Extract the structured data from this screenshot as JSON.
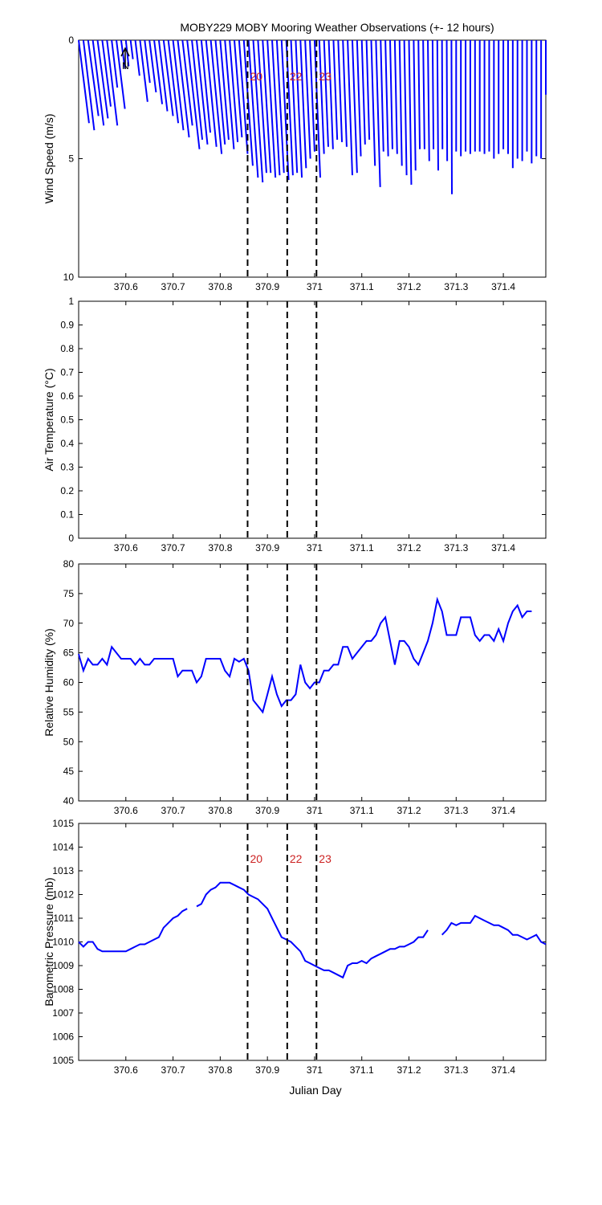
{
  "title": "MOBY229 MOBY Mooring Weather Observations (+- 12 hours)",
  "colors": {
    "series": "#0000ff",
    "event_label": "#cc2222",
    "axis": "#000000"
  },
  "x_axis": {
    "label": "Julian Day",
    "range": [
      370.5,
      371.49
    ],
    "ticks": [
      370.6,
      370.7,
      370.8,
      370.9,
      371,
      371.1,
      371.2,
      371.3,
      371.4
    ],
    "tick_labels": [
      "370.6",
      "370.7",
      "370.8",
      "370.9",
      "371",
      "371.1",
      "371.2",
      "371.3",
      "371.4"
    ]
  },
  "events": [
    {
      "label": "20",
      "x": 370.858
    },
    {
      "label": "22",
      "x": 370.942
    },
    {
      "label": "23",
      "x": 371.004
    }
  ],
  "chart_data": [
    {
      "type": "line",
      "id": "wind",
      "ylabel": "Wind Speed (m/s)",
      "ylim": [
        0,
        10
      ],
      "y_reversed": true,
      "yticks": [
        0,
        5,
        10
      ],
      "north_marker": "N",
      "show_event_labels": true,
      "series": [
        {
          "kind": "wind_sticks",
          "x": [
            370.5,
            370.51,
            370.52,
            370.53,
            370.54,
            370.55,
            370.56,
            370.57,
            370.58,
            370.59,
            370.6,
            370.61,
            370.62,
            370.63,
            370.64,
            370.65,
            370.66,
            370.67,
            370.68,
            370.69,
            370.7,
            370.71,
            370.72,
            370.73,
            370.74,
            370.75,
            370.76,
            370.77,
            370.78,
            370.79,
            370.8,
            370.81,
            370.82,
            370.83,
            370.84,
            370.85,
            370.86,
            370.87,
            370.88,
            370.89,
            370.9,
            370.91,
            370.92,
            370.93,
            370.94,
            370.95,
            370.96,
            370.97,
            370.98,
            370.99,
            371.0,
            371.01,
            371.02,
            371.03,
            371.04,
            371.05,
            371.06,
            371.07,
            371.08,
            371.09,
            371.1,
            371.11,
            371.12,
            371.13,
            371.14,
            371.15,
            371.16,
            371.17,
            371.18,
            371.19,
            371.2,
            371.21,
            371.22,
            371.23,
            371.24,
            371.25,
            371.26,
            371.27,
            371.28,
            371.29,
            371.3,
            371.31,
            371.32,
            371.33,
            371.34,
            371.35,
            371.36,
            371.37,
            371.38,
            371.39,
            371.4,
            371.41,
            371.42,
            371.43,
            371.44,
            371.45,
            371.46,
            371.47,
            371.48,
            371.49
          ],
          "speed": [
            3.5,
            3.8,
            3.2,
            3.6,
            3.3,
            2.8,
            3.6,
            2.0,
            2.9,
            1.2,
            1.1,
            0.8,
            1.5,
            2.6,
            1.8,
            2.2,
            2.7,
            3.0,
            3.2,
            3.5,
            3.8,
            4.1,
            3.6,
            4.6,
            4.2,
            4.4,
            3.9,
            4.5,
            4.8,
            4.4,
            4.2,
            4.6,
            4.3,
            4.1,
            4.8,
            5.3,
            5.8,
            6.0,
            5.6,
            5.6,
            5.8,
            5.7,
            5.6,
            5.9,
            5.7,
            5.6,
            5.8,
            5.4,
            5.0,
            4.7,
            5.8,
            4.8,
            4.5,
            4.6,
            4.2,
            4.3,
            4.5,
            5.7,
            5.6,
            4.9,
            4.4,
            4.2,
            5.3,
            6.2,
            4.7,
            4.9,
            4.6,
            4.8,
            5.3,
            5.7,
            6.1,
            5.5,
            4.6,
            4.6,
            5.1,
            4.6,
            5.5,
            4.6,
            5.1,
            6.5,
            4.7,
            4.9,
            4.7,
            4.8,
            4.7,
            4.7,
            4.8,
            4.7,
            5.0,
            4.8,
            4.6,
            4.8,
            5.4,
            5.0,
            5.1,
            4.7,
            5.2,
            4.9,
            5.0,
            2.3
          ],
          "dx_days": [
            0.022,
            0.023,
            0.022,
            0.023,
            0.022,
            0.018,
            0.022,
            0.012,
            0.018,
            0.008,
            0.006,
            0.005,
            0.009,
            0.016,
            0.011,
            0.014,
            0.017,
            0.018,
            0.02,
            0.021,
            0.022,
            0.024,
            0.021,
            0.026,
            0.022,
            0.023,
            0.019,
            0.022,
            0.023,
            0.02,
            0.018,
            0.019,
            0.017,
            0.016,
            0.018,
            0.019,
            0.02,
            0.02,
            0.018,
            0.017,
            0.017,
            0.016,
            0.015,
            0.015,
            0.014,
            0.013,
            0.013,
            0.012,
            0.011,
            0.01,
            0.012,
            0.01,
            0.009,
            0.009,
            0.008,
            0.008,
            0.008,
            0.01,
            0.01,
            0.008,
            0.007,
            0.006,
            0.008,
            0.009,
            0.006,
            0.006,
            0.005,
            0.005,
            0.005,
            0.005,
            0.005,
            0.004,
            0.003,
            0.003,
            0.003,
            0.002,
            0.002,
            0.001,
            0.001,
            0.001,
            0.0,
            0.0,
            0.0,
            0.0,
            0.0,
            0.0,
            0.0,
            0.0,
            0.0,
            0.0,
            0.0,
            0.0,
            0.0,
            0.0,
            0.0,
            0.0,
            0.0,
            0.0,
            0.0,
            0.0
          ]
        }
      ]
    },
    {
      "type": "line",
      "id": "airtemp",
      "ylabel": "Air Temperature (°C)",
      "ylim": [
        0,
        1
      ],
      "yticks": [
        0,
        0.1,
        0.2,
        0.3,
        0.4,
        0.5,
        0.6,
        0.7,
        0.8,
        0.9,
        1
      ],
      "ytick_labels": [
        "0",
        "0.1",
        "0.2",
        "0.3",
        "0.4",
        "0.5",
        "0.6",
        "0.7",
        "0.8",
        "0.9",
        "1"
      ],
      "show_event_labels": false,
      "series": []
    },
    {
      "type": "line",
      "id": "humidity",
      "ylabel": "Relative Humidity (%)",
      "ylim": [
        40,
        80
      ],
      "yticks": [
        40,
        45,
        50,
        55,
        60,
        65,
        70,
        75,
        80
      ],
      "show_event_labels": false,
      "series": [
        {
          "x": [
            370.5,
            370.51,
            370.52,
            370.53,
            370.54,
            370.55,
            370.56,
            370.57,
            370.58,
            370.59,
            370.6,
            370.61,
            370.62,
            370.63,
            370.64,
            370.65,
            370.66,
            370.67,
            370.68,
            370.69,
            370.7,
            370.71,
            370.72,
            370.73,
            370.74,
            370.75,
            370.76,
            370.77,
            370.78,
            370.79,
            370.8,
            370.81,
            370.82,
            370.83,
            370.84,
            370.85,
            370.86,
            370.87,
            370.88,
            370.89,
            370.9,
            370.91,
            370.92,
            370.93,
            370.94,
            370.95,
            370.96,
            370.97,
            370.98,
            370.99,
            371.0,
            371.01,
            371.02,
            371.03,
            371.04,
            371.05,
            371.06,
            371.07,
            371.08,
            371.09,
            371.1,
            371.11,
            371.12,
            371.13,
            371.14,
            371.15,
            371.16,
            371.17,
            371.18,
            371.19,
            371.2,
            371.21,
            371.22,
            371.23,
            371.24,
            371.25,
            371.26,
            371.27,
            371.28,
            371.29,
            371.3,
            371.31,
            371.32,
            371.33,
            371.34,
            371.35,
            371.36,
            371.37,
            371.38,
            371.39,
            371.4,
            371.41,
            371.42,
            371.43,
            371.44,
            371.45,
            371.46,
            371.47,
            371.48,
            371.49
          ],
          "values": [
            64.8,
            62.0,
            64.0,
            63.0,
            63.0,
            64.0,
            63.0,
            66.0,
            65.0,
            64.0,
            64.0,
            64.0,
            63.0,
            64.0,
            63.0,
            63.0,
            64.0,
            64.0,
            64.0,
            64.0,
            64.0,
            61.0,
            62.0,
            62.0,
            62.0,
            60.0,
            61.0,
            64.0,
            64.0,
            64.0,
            64.0,
            62.0,
            61.0,
            64.0,
            63.5,
            64.0,
            62.0,
            57.0,
            56.0,
            55.0,
            58.0,
            61.0,
            58.0,
            56.0,
            57.0,
            57.0,
            58.0,
            63.0,
            60.0,
            59.0,
            60.0,
            60.0,
            62.0,
            62.0,
            63.0,
            63.0,
            66.0,
            66.0,
            64.0,
            65.0,
            66.0,
            67.0,
            67.0,
            68.0,
            70.0,
            71.0,
            67.0,
            63.0,
            67.0,
            67.0,
            66.0,
            64.0,
            63.0,
            65.0,
            67.0,
            70.0,
            74.0,
            72.0,
            68.0,
            68.0,
            68.0,
            71.0,
            71.0,
            71.0,
            68.0,
            67.0,
            68.0,
            68.0,
            67.0,
            69.0,
            67.0,
            70.0,
            72.0,
            73.0,
            71.0,
            72.0,
            72.0,
            null,
            null,
            null
          ]
        }
      ]
    },
    {
      "type": "line",
      "id": "pressure",
      "ylabel": "Barometric Pressure (mb)",
      "ylim": [
        1005,
        1015
      ],
      "yticks": [
        1005,
        1006,
        1007,
        1008,
        1009,
        1010,
        1011,
        1012,
        1013,
        1014,
        1015
      ],
      "show_event_labels": true,
      "series": [
        {
          "x": [
            370.5,
            370.51,
            370.52,
            370.53,
            370.54,
            370.55,
            370.56,
            370.57,
            370.58,
            370.59,
            370.6,
            370.61,
            370.62,
            370.63,
            370.64,
            370.65,
            370.66,
            370.67,
            370.68,
            370.69,
            370.7,
            370.71,
            370.72,
            370.73,
            370.74,
            370.75,
            370.76,
            370.77,
            370.78,
            370.79,
            370.8,
            370.81,
            370.82,
            370.83,
            370.84,
            370.85,
            370.86,
            370.87,
            370.88,
            370.89,
            370.9,
            370.91,
            370.92,
            370.93,
            370.94,
            370.95,
            370.96,
            370.97,
            370.98,
            370.99,
            371.0,
            371.01,
            371.02,
            371.03,
            371.04,
            371.05,
            371.06,
            371.07,
            371.08,
            371.09,
            371.1,
            371.11,
            371.12,
            371.13,
            371.14,
            371.15,
            371.16,
            371.17,
            371.18,
            371.19,
            371.2,
            371.21,
            371.22,
            371.23,
            371.24,
            371.25,
            371.26,
            371.27,
            371.28,
            371.29,
            371.3,
            371.31,
            371.32,
            371.33,
            371.34,
            371.35,
            371.36,
            371.37,
            371.38,
            371.39,
            371.4,
            371.41,
            371.42,
            371.43,
            371.44,
            371.45,
            371.46,
            371.47,
            371.48,
            371.49
          ],
          "values": [
            1010.0,
            1009.8,
            1010.0,
            1010.0,
            1009.7,
            1009.6,
            1009.6,
            1009.6,
            1009.6,
            1009.6,
            1009.6,
            1009.7,
            1009.8,
            1009.9,
            1009.9,
            1010.0,
            1010.1,
            1010.2,
            1010.6,
            1010.8,
            1011.0,
            1011.1,
            1011.3,
            1011.4,
            null,
            1011.5,
            1011.6,
            1012.0,
            1012.2,
            1012.3,
            1012.5,
            1012.5,
            1012.5,
            1012.4,
            1012.3,
            1012.2,
            1012.0,
            1011.9,
            1011.8,
            1011.6,
            1011.4,
            1011.0,
            1010.6,
            1010.2,
            1010.1,
            1010.0,
            1009.8,
            1009.6,
            1009.2,
            1009.1,
            1009.0,
            1008.9,
            1008.8,
            1008.8,
            1008.7,
            1008.6,
            1008.5,
            1009.0,
            1009.1,
            1009.1,
            1009.2,
            1009.1,
            1009.3,
            1009.4,
            1009.5,
            1009.6,
            1009.7,
            1009.7,
            1009.8,
            1009.8,
            1009.9,
            1010.0,
            1010.2,
            1010.2,
            1010.5,
            null,
            null,
            1010.3,
            1010.5,
            1010.8,
            1010.7,
            1010.8,
            1010.8,
            1010.8,
            1011.1,
            1011.0,
            1010.9,
            1010.8,
            1010.7,
            1010.7,
            1010.6,
            1010.5,
            1010.3,
            1010.3,
            1010.2,
            1010.1,
            1010.2,
            1010.3,
            1010.0,
            1009.9
          ]
        }
      ]
    }
  ]
}
